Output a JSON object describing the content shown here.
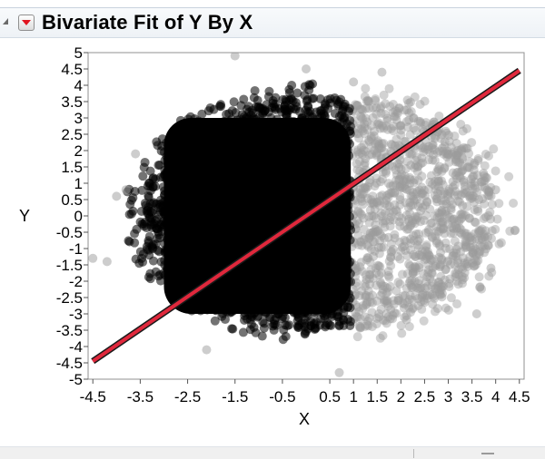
{
  "report": {
    "title": "Bivariate Fit of Y By X"
  },
  "icons": {
    "disclosure": "disclosure-triangle-icon",
    "hotspot": "red-triangle-menu-icon"
  },
  "colors": {
    "fit_line": "#e0283c",
    "points_selected": "#000000",
    "points_unselected": "#9c9c9c",
    "plot_border": "#909090"
  },
  "chart_data": {
    "type": "scatter",
    "xlabel": "X",
    "ylabel": "Y",
    "xlim": [
      -4.6,
      4.6
    ],
    "ylim": [
      -5,
      5
    ],
    "x_ticks": [
      "-4.5",
      "-3.5",
      "-2.5",
      "-1.5",
      "-0.5",
      "0.5",
      "1",
      "1.5",
      "2",
      "2.5",
      "3",
      "3.5",
      "4",
      "4.5"
    ],
    "y_ticks": [
      "5",
      "4.5",
      "4",
      "3.5",
      "3",
      "2.5",
      "2",
      "1.5",
      "1",
      "0.5",
      "0",
      "-0.5",
      "-1",
      "-1.5",
      "-2",
      "-2.5",
      "-3",
      "-3.5",
      "-4",
      "-4.5",
      "-5"
    ],
    "grid": false,
    "series": [
      {
        "x_range": [
          -3.5,
          1.0
        ],
        "y_range": [
          -3.6,
          3.8
        ],
        "color": "#000000"
      },
      {
        "x_range": [
          1.0,
          4.0
        ],
        "y_range": [
          -3.4,
          3.7
        ],
        "color": "#9c9c9c"
      }
    ],
    "fit_line": {
      "points": [
        [
          -4.5,
          -4.45
        ],
        [
          4.5,
          4.45
        ]
      ],
      "color": "#e0283c"
    },
    "outliers": [
      {
        "x": -1.5,
        "y": 4.9
      },
      {
        "x": 0.0,
        "y": 4.5
      },
      {
        "x": 1.0,
        "y": 4.1
      },
      {
        "x": -4.0,
        "y": 0.6
      },
      {
        "x": -3.8,
        "y": 0.8
      },
      {
        "x": -4.5,
        "y": -1.3
      },
      {
        "x": -4.2,
        "y": -1.4
      },
      {
        "x": -2.1,
        "y": -4.1
      },
      {
        "x": 0.7,
        "y": -4.8
      },
      {
        "x": 4.0,
        "y": 0.8
      },
      {
        "x": 3.9,
        "y": -1.6
      },
      {
        "x": 3.2,
        "y": 2.0
      },
      {
        "x": 1.6,
        "y": 4.4
      },
      {
        "x": -3.6,
        "y": 1.9
      },
      {
        "x": 3.6,
        "y": -3.0
      }
    ]
  }
}
